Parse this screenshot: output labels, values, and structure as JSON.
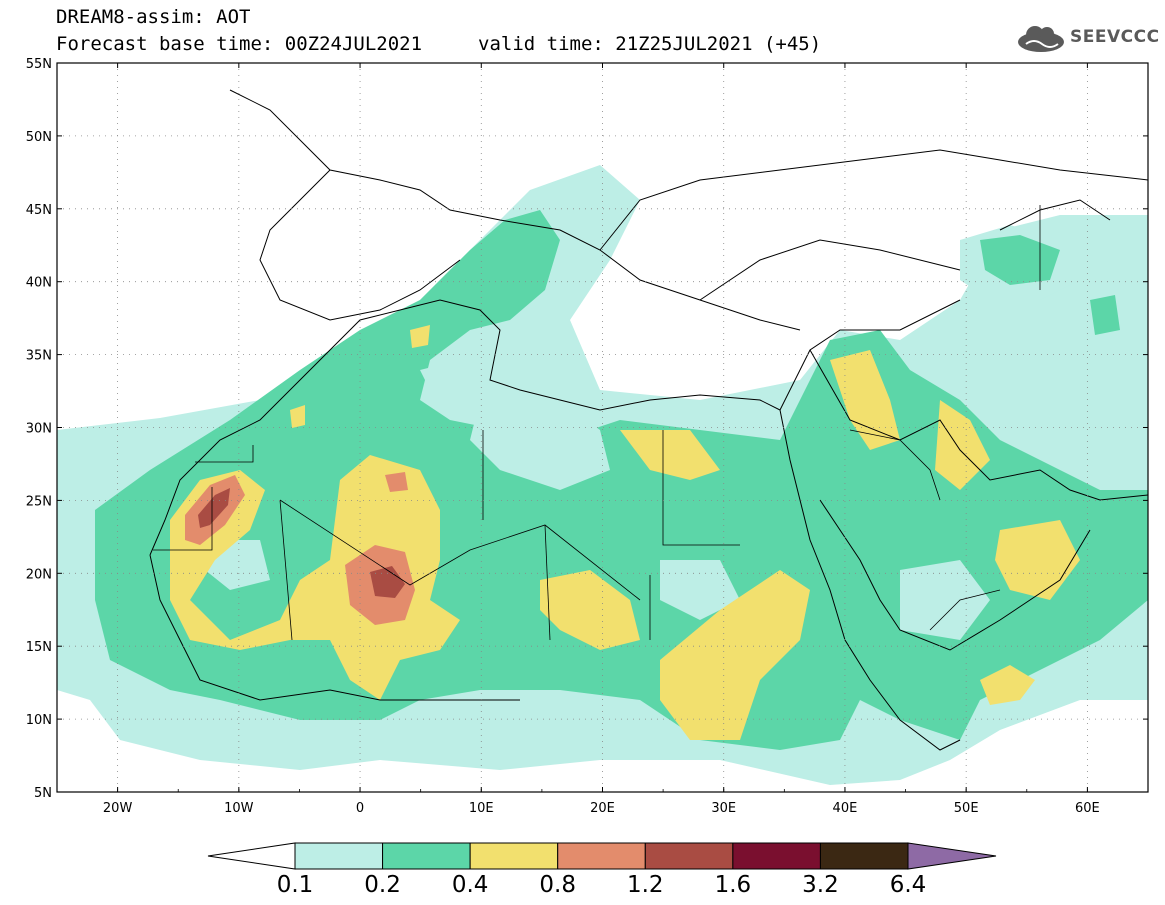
{
  "header": {
    "title": "DREAM8-assim: AOT",
    "base_time": "Forecast base time: 00Z24JUL2021",
    "valid_time": "valid time: 21Z25JUL2021 (+45)",
    "logo_text": "SEEVCCC"
  },
  "map": {
    "variable": "AOT",
    "lat_range": [
      5,
      55
    ],
    "lon_range": [
      -25,
      65
    ],
    "lat_ticks": [
      "55N",
      "50N",
      "45N",
      "40N",
      "35N",
      "30N",
      "25N",
      "20N",
      "15N",
      "10N",
      "5N"
    ],
    "lon_ticks": [
      "20W",
      "10W",
      "0",
      "10E",
      "20E",
      "30E",
      "40E",
      "50E",
      "60E"
    ]
  },
  "legend": {
    "levels": [
      "0.1",
      "0.2",
      "0.4",
      "0.8",
      "1.2",
      "1.6",
      "3.2",
      "6.4"
    ],
    "colors": [
      "#ffffff",
      "#bdeee6",
      "#5cd6a8",
      "#f2e06e",
      "#e38c6c",
      "#a94c43",
      "#7a0f2f",
      "#3b2813",
      "#8e6aa5"
    ]
  }
}
